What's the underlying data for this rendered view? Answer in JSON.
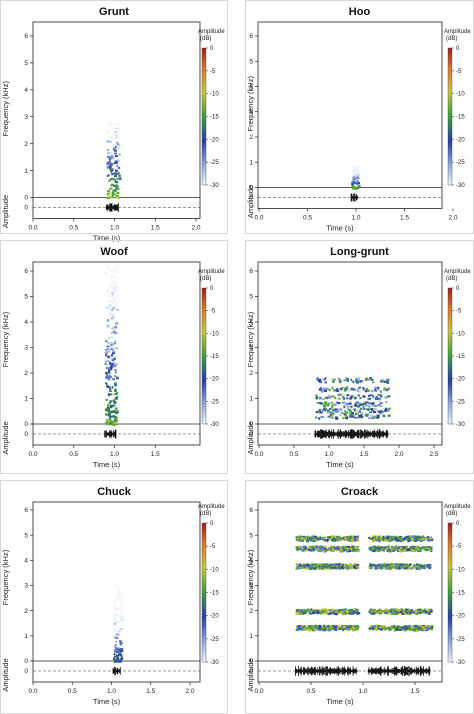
{
  "figure": {
    "panels": [
      {
        "id": "grunt",
        "title": "Grunt",
        "x_ticks": [
          "0.0",
          "0.5",
          "1.0",
          "1.5",
          "2.0"
        ],
        "x_max": 2.0,
        "y_ticks": [
          "0",
          "1",
          "2",
          "3",
          "4",
          "5",
          "6"
        ],
        "xlabel": "Time (s)",
        "ylabel": "Frequency (kHz)",
        "amp_label": "Amplitude",
        "colorbar": {
          "label_line1": "Amplitude",
          "label_line2": "(dB)",
          "ticks": [
            "0",
            "-5",
            "-10",
            "-15",
            "-20",
            "-25",
            "-30"
          ]
        }
      },
      {
        "id": "hoo",
        "title": "Hoo",
        "x_ticks": [
          "0.0",
          "0.5",
          "1.0",
          "1.5",
          "2.0"
        ],
        "x_max": 2.0,
        "y_ticks": [
          "0",
          "1",
          "2",
          "3",
          "4",
          "5",
          "6"
        ],
        "xlabel": "Time (s)",
        "ylabel": "Frequency (kHz)",
        "amp_label": "Amplitude",
        "colorbar": {
          "label_line1": "Amplitude",
          "label_line2": "(dB)",
          "ticks": [
            "0",
            "-5",
            "-10",
            "-15",
            "-20",
            "-25",
            "-30"
          ]
        }
      },
      {
        "id": "woof",
        "title": "Woof",
        "x_ticks": [
          "0.0",
          "0.5",
          "1.0",
          "1.5"
        ],
        "x_max": 2.0,
        "y_ticks": [
          "0",
          "1",
          "2",
          "3",
          "4",
          "5",
          "6"
        ],
        "xlabel": "Time (s)",
        "ylabel": "Frequency (kHz)",
        "amp_label": "Amplitude",
        "colorbar": {
          "label_line1": "Amplitude",
          "label_line2": "(dB)",
          "ticks": [
            "0",
            "-5",
            "-10",
            "-15",
            "-20",
            "-25",
            "-30"
          ]
        }
      },
      {
        "id": "long-grunt",
        "title": "Long-grunt",
        "x_ticks": [
          "0.0",
          "0.5",
          "1.0",
          "1.5",
          "2.0",
          "2.5"
        ],
        "x_max": 2.7,
        "y_ticks": [
          "0",
          "1",
          "2",
          "3",
          "4",
          "5",
          "6"
        ],
        "xlabel": "Time (s)",
        "ylabel": "Frequency (kHz)",
        "amp_label": "Amplitude",
        "colorbar": {
          "label_line1": "Amplitude",
          "label_line2": "(dB)",
          "ticks": [
            "0",
            "-5",
            "-10",
            "-15",
            "-20",
            "-25",
            "-30"
          ]
        }
      },
      {
        "id": "chuck",
        "title": "Chuck",
        "x_ticks": [
          "0.0",
          "0.5",
          "1.0",
          "1.5",
          "2.0"
        ],
        "x_max": 2.2,
        "y_ticks": [
          "0",
          "1",
          "2",
          "3",
          "4",
          "5",
          "6"
        ],
        "xlabel": "Time (s)",
        "ylabel": "Frequency (kHz)",
        "amp_label": "Amplitude",
        "colorbar": {
          "label_line1": "Amplitude",
          "label_line2": "(dB)",
          "ticks": [
            "0",
            "-5",
            "-10",
            "-15",
            "-20",
            "-25",
            "-30"
          ]
        }
      },
      {
        "id": "croack",
        "title": "Croack",
        "x_ticks": [
          "0.0",
          "0.5",
          "1.0",
          "1.5"
        ],
        "x_max": 1.9,
        "y_ticks": [
          "0",
          "1",
          "2",
          "3",
          "4",
          "5",
          "6"
        ],
        "xlabel": "Time (s)",
        "ylabel": "Frequency (kHz)",
        "amp_label": "Amplitude",
        "colorbar": {
          "label_line1": "Amplitude",
          "label_line2": "(dB)",
          "ticks": [
            "0",
            "-5",
            "-10",
            "-15",
            "-20",
            "-25",
            "-30"
          ]
        }
      }
    ]
  },
  "chart_data": [
    {
      "type": "heatmap",
      "title": "Grunt",
      "xlabel": "Time (s)",
      "ylabel": "Frequency (kHz)",
      "xlim": [
        0,
        2.0
      ],
      "ylim": [
        0,
        6.5
      ],
      "colorbar": {
        "label": "Amplitude (dB)",
        "range": [
          -30,
          0
        ]
      },
      "grid": false,
      "events": [
        {
          "t_start": 0.9,
          "t_end": 1.05,
          "f_min": 0.0,
          "f_max": 2.8,
          "peak_db": -8
        }
      ]
    },
    {
      "type": "heatmap",
      "title": "Hoo",
      "xlabel": "Time (s)",
      "ylabel": "Frequency (kHz)",
      "xlim": [
        0,
        2.0
      ],
      "ylim": [
        0,
        6.5
      ],
      "colorbar": {
        "label": "Amplitude (dB)",
        "range": [
          -30,
          0
        ]
      },
      "grid": false,
      "events": [
        {
          "t_start": 0.95,
          "t_end": 1.02,
          "f_min": 0.0,
          "f_max": 0.9,
          "peak_db": -12
        }
      ]
    },
    {
      "type": "heatmap",
      "title": "Woof",
      "xlabel": "Time (s)",
      "ylabel": "Frequency (kHz)",
      "xlim": [
        0,
        2.0
      ],
      "ylim": [
        0,
        6.5
      ],
      "colorbar": {
        "label": "Amplitude (dB)",
        "range": [
          -30,
          0
        ]
      },
      "grid": false,
      "events": [
        {
          "t_start": 0.88,
          "t_end": 1.02,
          "f_min": 0.0,
          "f_max": 6.3,
          "peak_db": -10
        }
      ]
    },
    {
      "type": "heatmap",
      "title": "Long-grunt",
      "xlabel": "Time (s)",
      "ylabel": "Frequency (kHz)",
      "xlim": [
        0,
        2.7
      ],
      "ylim": [
        0,
        6.5
      ],
      "colorbar": {
        "label": "Amplitude (dB)",
        "range": [
          -30,
          0
        ]
      },
      "grid": false,
      "events": [
        {
          "t_start": 0.8,
          "t_end": 1.85,
          "f_min": 0.2,
          "f_max": 1.8,
          "harmonics_khz": [
            0.35,
            0.55,
            0.8,
            1.1,
            1.4,
            1.75
          ],
          "peak_db": -12
        }
      ]
    },
    {
      "type": "heatmap",
      "title": "Chuck",
      "xlabel": "Time (s)",
      "ylabel": "Frequency (kHz)",
      "xlim": [
        0,
        2.2
      ],
      "ylim": [
        0,
        6.5
      ],
      "colorbar": {
        "label": "Amplitude (dB)",
        "range": [
          -30,
          0
        ]
      },
      "grid": false,
      "events": [
        {
          "t_start": 1.02,
          "t_end": 1.12,
          "f_min": 0.0,
          "f_max": 3.0,
          "peak_db": -15
        }
      ]
    },
    {
      "type": "heatmap",
      "title": "Croack",
      "xlabel": "Time (s)",
      "ylabel": "Frequency (kHz)",
      "xlim": [
        0,
        1.9
      ],
      "ylim": [
        0,
        6.5
      ],
      "colorbar": {
        "label": "Amplitude (dB)",
        "range": [
          -30,
          0
        ]
      },
      "grid": false,
      "events": [
        {
          "t_start": 0.35,
          "t_end": 0.95,
          "f_min": 0.8,
          "f_max": 6.3,
          "bands_khz": [
            1.35,
            2.0,
            3.8,
            4.5,
            4.9
          ],
          "peak_db": -8
        },
        {
          "t_start": 1.05,
          "t_end": 1.65,
          "f_min": 0.8,
          "f_max": 6.3,
          "bands_khz": [
            1.35,
            2.0,
            3.8,
            4.5,
            4.9
          ],
          "peak_db": -8
        }
      ]
    }
  ]
}
